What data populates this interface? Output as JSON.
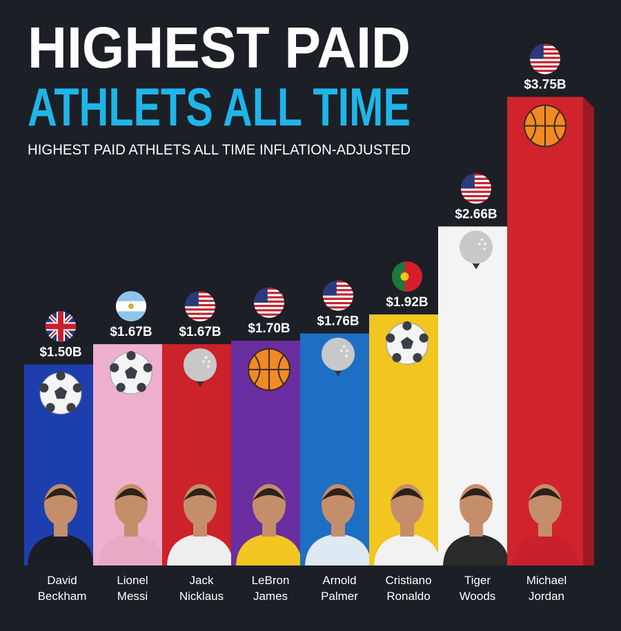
{
  "header": {
    "title_line1": "HIGHEST PAID",
    "title_line2": "ATHLETS ALL TIME",
    "subtitle": "HIGHEST PAID ATHLETS ALL TIME INFLATION-ADJUSTED"
  },
  "colors": {
    "background": "#1c1f26",
    "title": "#ffffff",
    "title_accent": "#1fb5e9"
  },
  "chart_data": {
    "type": "bar",
    "title": "HIGHEST PAID ATHLETS ALL TIME",
    "subtitle": "HIGHEST PAID ATHLETS ALL TIME INFLATION-ADJUSTED",
    "unit": "USD billions",
    "categories": [
      "David Beckham",
      "Lionel Messi",
      "Jack Nicklaus",
      "LeBron James",
      "Arnold Palmer",
      "Cristiano Ronaldo",
      "Tiger Woods",
      "Michael Jordan"
    ],
    "values": [
      1.5,
      1.67,
      1.67,
      1.7,
      1.76,
      1.92,
      2.66,
      3.75
    ],
    "value_labels": [
      "$1.50B",
      "$1.67B",
      "$1.67B",
      "$1.70B",
      "$1.76B",
      "$1.92B",
      "$2.66B",
      "$3.75B"
    ],
    "name_lines": [
      [
        "David",
        "Beckham"
      ],
      [
        "Lionel",
        "Messi"
      ],
      [
        "Jack",
        "Nicklaus"
      ],
      [
        "LeBron",
        "James"
      ],
      [
        "Arnold",
        "Palmer"
      ],
      [
        "Cristiano",
        "Ronaldo"
      ],
      [
        "Tiger",
        "Woods"
      ],
      [
        "Michael",
        "Jordan"
      ]
    ],
    "sports": [
      "soccer-ball-icon",
      "soccer-ball-icon",
      "golf-ball-icon",
      "basketball-icon",
      "golf-ball-icon",
      "soccer-ball-icon",
      "golf-ball-icon",
      "basketball-icon"
    ],
    "flags": [
      "uk-flag-icon",
      "argentina-flag-icon",
      "usa-flag-icon",
      "usa-flag-icon",
      "usa-flag-icon",
      "portugal-flag-icon",
      "usa-flag-icon",
      "usa-flag-icon"
    ],
    "bar_colors": [
      "#1d3fae",
      "#eeb0cc",
      "#cc2229",
      "#6a2ea0",
      "#1d6fc4",
      "#f2c521",
      "#f4f4f4",
      "#d0232e"
    ],
    "grid": false,
    "legend": "none"
  }
}
